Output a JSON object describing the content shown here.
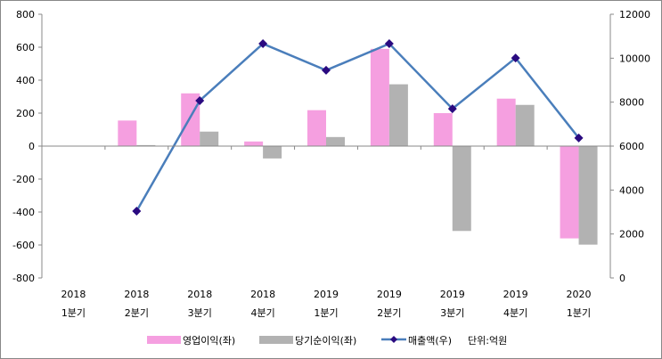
{
  "chart_data": {
    "type": "bar",
    "title": "",
    "categories": [
      [
        "2018",
        "1분기"
      ],
      [
        "2018",
        "2분기"
      ],
      [
        "2018",
        "3분기"
      ],
      [
        "2018",
        "4분기"
      ],
      [
        "2019",
        "1분기"
      ],
      [
        "2019",
        "2분기"
      ],
      [
        "2019",
        "3분기"
      ],
      [
        "2019",
        "4분기"
      ],
      [
        "2020",
        "1분기"
      ]
    ],
    "left_axis": {
      "ylim": [
        -800,
        800
      ],
      "ticks": [
        800,
        600,
        400,
        200,
        0,
        -200,
        -400,
        -600,
        -800
      ]
    },
    "right_axis": {
      "ylim": [
        0,
        12000
      ],
      "ticks": [
        12000,
        10000,
        8000,
        6000,
        4000,
        2000,
        0
      ]
    },
    "series": [
      {
        "name": "영업이익(좌)",
        "type": "bar",
        "axis": "left",
        "color": "#f59fe0",
        "values": [
          0,
          155,
          320,
          28,
          218,
          590,
          200,
          288,
          -560
        ]
      },
      {
        "name": "당기순이익(좌)",
        "type": "bar",
        "axis": "left",
        "color": "#b2b2b2",
        "values": [
          0,
          6,
          88,
          -75,
          55,
          375,
          -515,
          250,
          -598
        ]
      },
      {
        "name": "매출액(우)",
        "type": "line",
        "axis": "right",
        "color": "#4a7ebb",
        "marker_color": "#2a0a80",
        "values": [
          null,
          3040,
          8070,
          10660,
          9450,
          10660,
          7700,
          10010,
          6370
        ]
      }
    ],
    "unit_note": "단위:억원",
    "legend_position": "bottom"
  }
}
